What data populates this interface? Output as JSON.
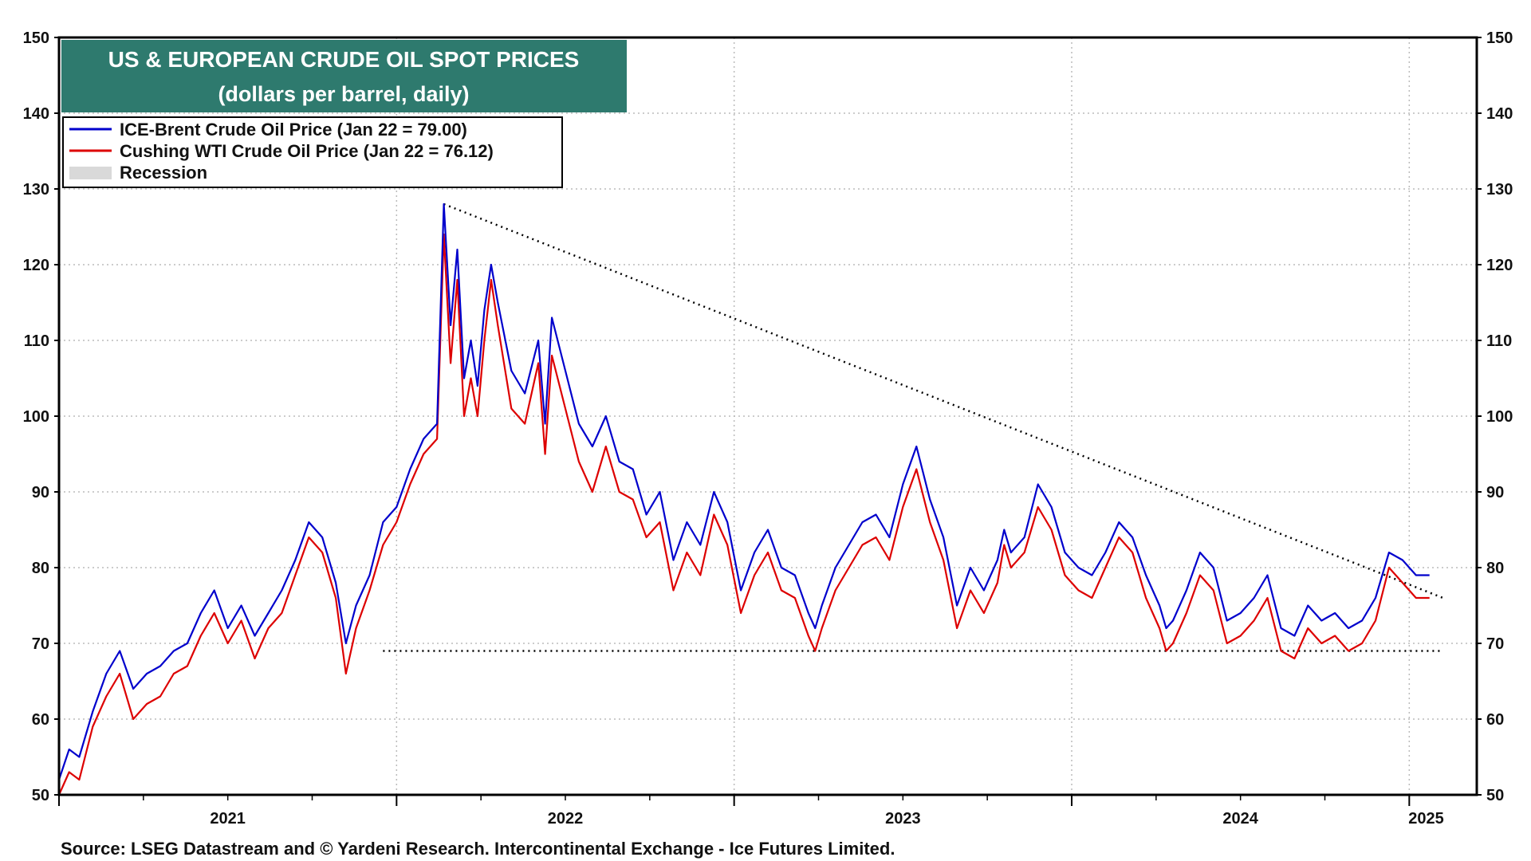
{
  "chart_data": {
    "type": "line",
    "title": "US & EUROPEAN CRUDE OIL SPOT PRICES",
    "subtitle": "(dollars per barrel, daily)",
    "ylim": [
      50,
      150
    ],
    "yticks": [
      "50",
      "60",
      "70",
      "80",
      "90",
      "100",
      "110",
      "120",
      "130",
      "140",
      "150"
    ],
    "xlim": [
      2021.0,
      2025.2
    ],
    "xticks": [
      "2021",
      "2022",
      "2023",
      "2024",
      "2025"
    ],
    "grid": true,
    "legend_position": "top-left",
    "legend": [
      {
        "label": "ICE-Brent Crude Oil Price (Jan 22 = 79.00)",
        "color": "#0000cc"
      },
      {
        "label": "Cushing WTI Crude Oil Price (Jan 22 = 76.12)",
        "color": "#dd0000"
      },
      {
        "label": "Recession",
        "color": "#d9d9d9"
      }
    ],
    "series": [
      {
        "name": "ICE-Brent Crude Oil Price",
        "color": "#0000cc",
        "x": [
          2021.0,
          2021.03,
          2021.06,
          2021.1,
          2021.14,
          2021.18,
          2021.22,
          2021.26,
          2021.3,
          2021.34,
          2021.38,
          2021.42,
          2021.46,
          2021.5,
          2021.54,
          2021.58,
          2021.62,
          2021.66,
          2021.7,
          2021.74,
          2021.78,
          2021.82,
          2021.85,
          2021.88,
          2021.92,
          2021.96,
          2022.0,
          2022.04,
          2022.08,
          2022.12,
          2022.14,
          2022.16,
          2022.18,
          2022.2,
          2022.22,
          2022.24,
          2022.26,
          2022.28,
          2022.3,
          2022.34,
          2022.38,
          2022.42,
          2022.44,
          2022.46,
          2022.5,
          2022.54,
          2022.58,
          2022.62,
          2022.66,
          2022.7,
          2022.74,
          2022.78,
          2022.82,
          2022.86,
          2022.9,
          2022.94,
          2022.98,
          2023.02,
          2023.06,
          2023.1,
          2023.14,
          2023.18,
          2023.22,
          2023.24,
          2023.26,
          2023.3,
          2023.34,
          2023.38,
          2023.42,
          2023.46,
          2023.5,
          2023.54,
          2023.58,
          2023.62,
          2023.66,
          2023.7,
          2023.74,
          2023.78,
          2023.8,
          2023.82,
          2023.86,
          2023.9,
          2023.94,
          2023.98,
          2024.02,
          2024.06,
          2024.1,
          2024.14,
          2024.18,
          2024.22,
          2024.26,
          2024.28,
          2024.3,
          2024.34,
          2024.38,
          2024.42,
          2024.46,
          2024.5,
          2024.54,
          2024.58,
          2024.62,
          2024.66,
          2024.7,
          2024.74,
          2024.78,
          2024.82,
          2024.86,
          2024.9,
          2024.94,
          2024.98,
          2025.02,
          2025.06
        ],
        "values": [
          52,
          56,
          55,
          61,
          66,
          69,
          64,
          66,
          67,
          69,
          70,
          74,
          77,
          72,
          75,
          71,
          74,
          77,
          81,
          86,
          84,
          78,
          70,
          75,
          79,
          86,
          88,
          93,
          97,
          99,
          128,
          112,
          122,
          105,
          110,
          104,
          114,
          120,
          115,
          106,
          103,
          110,
          99,
          113,
          106,
          99,
          96,
          100,
          94,
          93,
          87,
          90,
          81,
          86,
          83,
          90,
          86,
          77,
          82,
          85,
          80,
          79,
          74,
          72,
          75,
          80,
          83,
          86,
          87,
          84,
          91,
          96,
          89,
          84,
          75,
          80,
          77,
          81,
          85,
          82,
          84,
          91,
          88,
          82,
          80,
          79,
          82,
          86,
          84,
          79,
          75,
          72,
          73,
          77,
          82,
          80,
          73,
          74,
          76,
          79,
          72,
          71,
          75,
          73,
          74,
          72,
          73,
          76,
          82,
          81,
          79,
          79
        ]
      },
      {
        "name": "Cushing WTI Crude Oil Price",
        "color": "#dd0000",
        "x": [
          2021.0,
          2021.03,
          2021.06,
          2021.1,
          2021.14,
          2021.18,
          2021.22,
          2021.26,
          2021.3,
          2021.34,
          2021.38,
          2021.42,
          2021.46,
          2021.5,
          2021.54,
          2021.58,
          2021.62,
          2021.66,
          2021.7,
          2021.74,
          2021.78,
          2021.82,
          2021.85,
          2021.88,
          2021.92,
          2021.96,
          2022.0,
          2022.04,
          2022.08,
          2022.12,
          2022.14,
          2022.16,
          2022.18,
          2022.2,
          2022.22,
          2022.24,
          2022.26,
          2022.28,
          2022.3,
          2022.34,
          2022.38,
          2022.42,
          2022.44,
          2022.46,
          2022.5,
          2022.54,
          2022.58,
          2022.62,
          2022.66,
          2022.7,
          2022.74,
          2022.78,
          2022.82,
          2022.86,
          2022.9,
          2022.94,
          2022.98,
          2023.02,
          2023.06,
          2023.1,
          2023.14,
          2023.18,
          2023.22,
          2023.24,
          2023.26,
          2023.3,
          2023.34,
          2023.38,
          2023.42,
          2023.46,
          2023.5,
          2023.54,
          2023.58,
          2023.62,
          2023.66,
          2023.7,
          2023.74,
          2023.78,
          2023.8,
          2023.82,
          2023.86,
          2023.9,
          2023.94,
          2023.98,
          2024.02,
          2024.06,
          2024.1,
          2024.14,
          2024.18,
          2024.22,
          2024.26,
          2024.28,
          2024.3,
          2024.34,
          2024.38,
          2024.42,
          2024.46,
          2024.5,
          2024.54,
          2024.58,
          2024.62,
          2024.66,
          2024.7,
          2024.74,
          2024.78,
          2024.82,
          2024.86,
          2024.9,
          2024.94,
          2024.98,
          2025.02,
          2025.06
        ],
        "values": [
          50,
          53,
          52,
          59,
          63,
          66,
          60,
          62,
          63,
          66,
          67,
          71,
          74,
          70,
          73,
          68,
          72,
          74,
          79,
          84,
          82,
          76,
          66,
          72,
          77,
          83,
          86,
          91,
          95,
          97,
          124,
          107,
          118,
          100,
          105,
          100,
          110,
          118,
          112,
          101,
          99,
          107,
          95,
          108,
          101,
          94,
          90,
          96,
          90,
          89,
          84,
          86,
          77,
          82,
          79,
          87,
          83,
          74,
          79,
          82,
          77,
          76,
          71,
          69,
          72,
          77,
          80,
          83,
          84,
          81,
          88,
          93,
          86,
          81,
          72,
          77,
          74,
          78,
          83,
          80,
          82,
          88,
          85,
          79,
          77,
          76,
          80,
          84,
          82,
          76,
          72,
          69,
          70,
          74,
          79,
          77,
          70,
          71,
          73,
          76,
          69,
          68,
          72,
          70,
          71,
          69,
          70,
          73,
          80,
          78,
          76,
          76
        ]
      }
    ],
    "annotations": [
      {
        "type": "trendline",
        "style": "dotted",
        "from": {
          "x": 2022.14,
          "y": 128
        },
        "to": {
          "x": 2025.1,
          "y": 76
        }
      },
      {
        "type": "support-line",
        "style": "dotted",
        "from": {
          "x": 2021.96,
          "y": 69
        },
        "to": {
          "x": 2025.1,
          "y": 69
        }
      }
    ],
    "source": "Source: LSEG Datastream and © Yardeni Research. Intercontinental Exchange - Ice Futures Limited."
  }
}
